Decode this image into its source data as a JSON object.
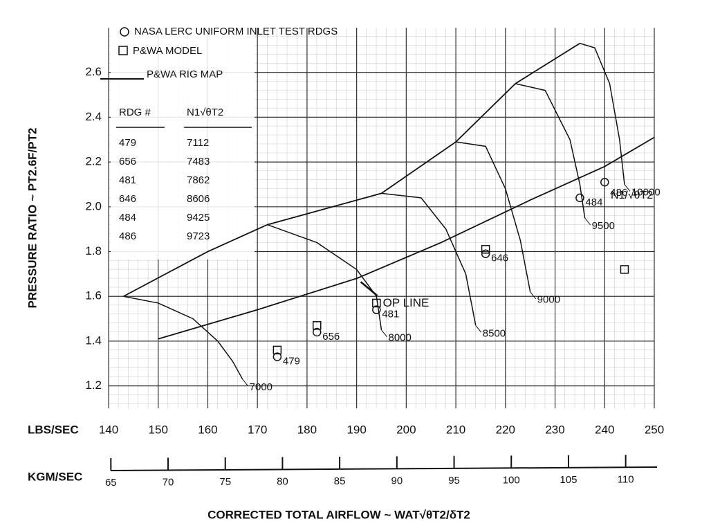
{
  "chart_data": {
    "type": "line",
    "y_label": "PRESSURE RATIO  ~  PT2.6F/PT2",
    "x_label": "CORRECTED TOTAL AIRFLOW  ~  WAT√θT2/δT2",
    "x_unit": "LBS/SEC",
    "x2_unit": "KGM/SEC",
    "speed_label": "N1/√θT2",
    "xlim": [
      140,
      250
    ],
    "xticks": [
      140,
      150,
      160,
      170,
      180,
      190,
      200,
      210,
      220,
      230,
      240,
      250
    ],
    "x2lim": [
      64.8,
      112.5
    ],
    "x2ticks": [
      65,
      70,
      75,
      80,
      85,
      90,
      95,
      100,
      105,
      110
    ],
    "ylim": [
      1.1,
      2.8
    ],
    "yticks": [
      1.2,
      1.4,
      1.6,
      1.8,
      {
        "value": 2.0,
        "label": "2.0"
      },
      2.2,
      2.4,
      2.6
    ],
    "grid": true,
    "color": "#111111",
    "test_readings": {
      "name": "NASA LERC UNIFORM INLET TEST RDGS",
      "labels": [
        "479",
        "656",
        "481",
        "646",
        "484",
        "486"
      ],
      "x": [
        174,
        182,
        194,
        216,
        235,
        240
      ],
      "values": [
        1.33,
        1.44,
        1.54,
        1.79,
        2.04,
        2.11
      ]
    },
    "model_points": {
      "name": "P&WA MODEL",
      "x": [
        174,
        182,
        194,
        216,
        244
      ],
      "values": [
        1.36,
        1.47,
        1.57,
        1.81,
        1.72
      ]
    },
    "rig_map": {
      "name": "P&WA RIG MAP",
      "surge_line": {
        "x": [
          143,
          160,
          172,
          195,
          210,
          222,
          235
        ],
        "values": [
          1.6,
          1.8,
          1.92,
          2.06,
          2.29,
          2.55,
          2.73
        ]
      },
      "op_line": {
        "label": "OP LINE",
        "x": [
          150,
          170,
          190,
          207,
          225,
          240,
          250
        ],
        "values": [
          1.41,
          1.54,
          1.68,
          1.84,
          2.03,
          2.18,
          2.31
        ]
      },
      "lines": [
        {
          "label": "7000",
          "x": [
            143,
            150,
            157,
            162,
            165,
            167
          ],
          "values": [
            1.6,
            1.57,
            1.5,
            1.4,
            1.31,
            1.23
          ]
        },
        {
          "label": "8000",
          "x": [
            172,
            182,
            190,
            194,
            195
          ],
          "values": [
            1.92,
            1.84,
            1.72,
            1.6,
            1.45
          ]
        },
        {
          "label": "8500",
          "x": [
            195,
            203,
            208,
            212,
            214
          ],
          "values": [
            2.06,
            2.04,
            1.9,
            1.7,
            1.47
          ]
        },
        {
          "label": "9000",
          "x": [
            210,
            216,
            220,
            223,
            225
          ],
          "values": [
            2.29,
            2.27,
            2.08,
            1.85,
            1.62
          ]
        },
        {
          "label": "9500",
          "x": [
            222,
            228,
            233,
            235,
            236
          ],
          "values": [
            2.55,
            2.52,
            2.3,
            2.1,
            1.95
          ]
        },
        {
          "label": "10000",
          "x": [
            235,
            238,
            241,
            243,
            244
          ],
          "values": [
            2.73,
            2.71,
            2.55,
            2.3,
            2.1
          ]
        }
      ]
    },
    "table": {
      "headers": [
        "RDG #",
        "N1√θT2"
      ],
      "rows": [
        [
          "479",
          "7112"
        ],
        [
          "656",
          "7483"
        ],
        [
          "481",
          "7862"
        ],
        [
          "646",
          "8606"
        ],
        [
          "484",
          "9425"
        ],
        [
          "486",
          "9723"
        ]
      ]
    }
  }
}
